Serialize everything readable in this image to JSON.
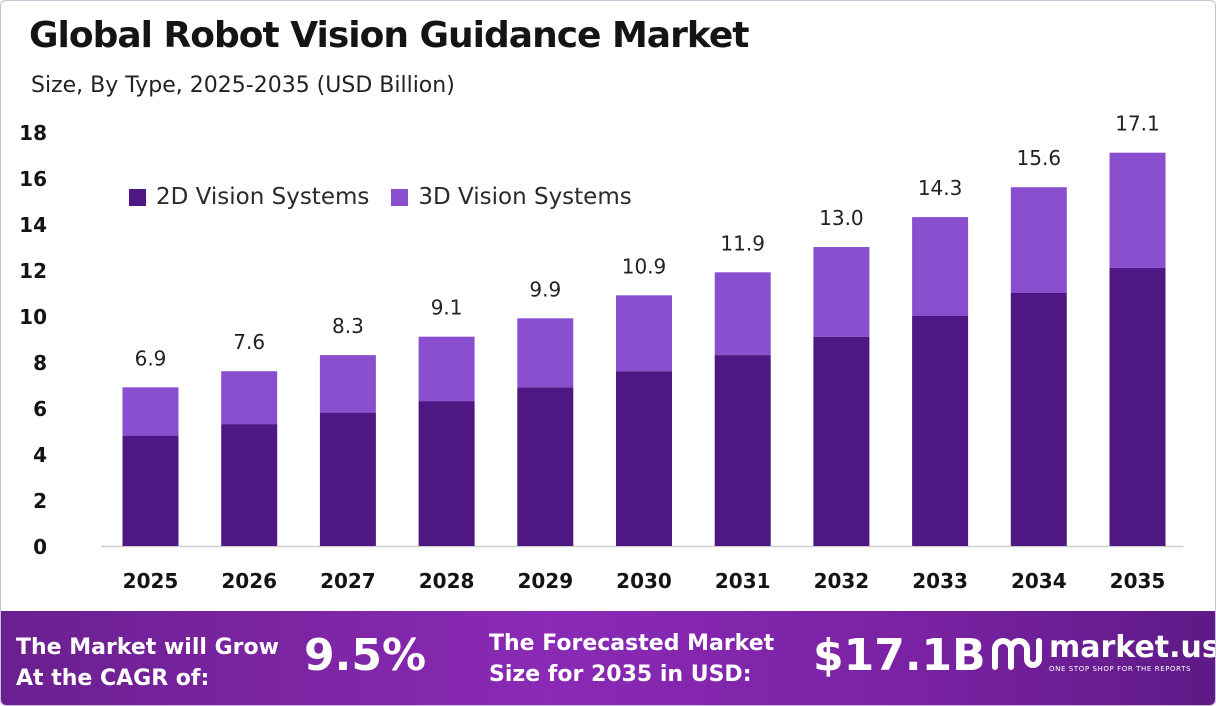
{
  "header": {
    "title": "Global Robot Vision Guidance Market",
    "subtitle": "Size, By Type, 2025-2035 (USD Billion)"
  },
  "colors": {
    "series_2d": "#4f1783",
    "series_3d": "#8a4fcf",
    "axis_text": "#141414",
    "footer_start": "#6b1f8f",
    "footer_end": "#8a2ab5"
  },
  "chart_data": {
    "type": "bar",
    "stacked": true,
    "categories": [
      "2025",
      "2026",
      "2027",
      "2028",
      "2029",
      "2030",
      "2031",
      "2032",
      "2033",
      "2034",
      "2035"
    ],
    "series": [
      {
        "name": "2D Vision Systems",
        "values": [
          4.8,
          5.3,
          5.8,
          6.3,
          6.9,
          7.6,
          8.3,
          9.1,
          10.0,
          11.0,
          12.1
        ]
      },
      {
        "name": "3D Vision Systems",
        "values": [
          2.1,
          2.3,
          2.5,
          2.8,
          3.0,
          3.3,
          3.6,
          3.9,
          4.3,
          4.6,
          5.0
        ]
      }
    ],
    "totals": [
      "6.9",
      "7.6",
      "8.3",
      "9.1",
      "9.9",
      "10.9",
      "11.9",
      "13.0",
      "14.3",
      "15.6",
      "17.1"
    ],
    "y_ticks": [
      "0",
      "2",
      "4",
      "6",
      "8",
      "10",
      "12",
      "14",
      "16",
      "18"
    ],
    "ylim": [
      0,
      18
    ],
    "grid": false,
    "legend_position": "top-left"
  },
  "footer": {
    "cagr_label_line1": "The Market will Grow",
    "cagr_label_line2": "At the CAGR of:",
    "cagr_value": "9.5%",
    "forecast_label_line1": "The Forecasted Market",
    "forecast_label_line2": "Size for 2035 in USD:",
    "forecast_value": "$17.1B"
  },
  "brand": {
    "name": "market.us",
    "tagline": "ONE STOP SHOP FOR THE REPORTS",
    "logo_icon": "market-us-logo-icon"
  }
}
